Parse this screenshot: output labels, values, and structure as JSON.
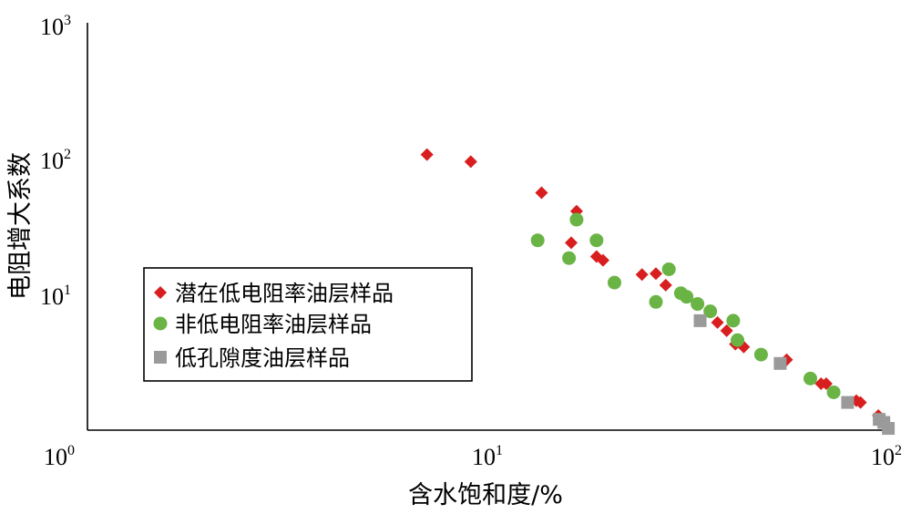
{
  "chart_data": {
    "type": "scatter",
    "title": "",
    "xlabel": "含水饱和度/%",
    "ylabel": "电阻增大系数",
    "x_scale": "log",
    "y_scale": "log",
    "xlim": [
      1,
      100
    ],
    "ylim": [
      1,
      1000
    ],
    "x_ticks": [
      {
        "base": "10",
        "exp": "0"
      },
      {
        "base": "10",
        "exp": "1"
      },
      {
        "base": "10",
        "exp": "2"
      }
    ],
    "y_ticks": [
      {
        "base": "10",
        "exp": "3"
      },
      {
        "base": "10",
        "exp": "2"
      },
      {
        "base": "10",
        "exp": "1"
      }
    ],
    "grid": false,
    "legend_position": "lower-left",
    "series": [
      {
        "name": "潜在低电阻率油层样品",
        "marker": "diamond",
        "color": "#d81e1e",
        "points": [
          [
            7.0,
            107
          ],
          [
            9.0,
            95
          ],
          [
            13.5,
            56
          ],
          [
            16.5,
            41
          ],
          [
            16.0,
            24
          ],
          [
            18.5,
            19
          ],
          [
            19.2,
            17.8
          ],
          [
            24,
            14
          ],
          [
            26,
            14.2
          ],
          [
            27.5,
            11.7
          ],
          [
            37,
            6.2
          ],
          [
            39,
            5.4
          ],
          [
            41,
            4.3
          ],
          [
            43,
            4.1
          ],
          [
            55,
            3.3
          ],
          [
            67,
            2.2
          ],
          [
            69,
            2.2
          ],
          [
            82,
            1.65
          ],
          [
            84,
            1.6
          ],
          [
            93,
            1.28
          ]
        ]
      },
      {
        "name": "非低电阻率油层样品",
        "marker": "circle",
        "color": "#6ab446",
        "points": [
          [
            13.2,
            25
          ],
          [
            15.8,
            18.5
          ],
          [
            16.5,
            35.5
          ],
          [
            18.5,
            25
          ],
          [
            20.5,
            12.2
          ],
          [
            26,
            8.8
          ],
          [
            28,
            15.3
          ],
          [
            30,
            10.2
          ],
          [
            31,
            9.6
          ],
          [
            33,
            8.5
          ],
          [
            35.5,
            7.5
          ],
          [
            40.5,
            6.4
          ],
          [
            41.5,
            4.6
          ],
          [
            47.5,
            3.6
          ],
          [
            63,
            2.4
          ],
          [
            72,
            1.9
          ]
        ]
      },
      {
        "name": "低孔隙度油层样品",
        "marker": "square",
        "color": "#9a9a9a",
        "points": [
          [
            33.5,
            6.4
          ],
          [
            53,
            3.1
          ],
          [
            78,
            1.6
          ],
          [
            93.5,
            1.2
          ],
          [
            96,
            1.14
          ],
          [
            98.5,
            1.03
          ]
        ]
      }
    ]
  }
}
